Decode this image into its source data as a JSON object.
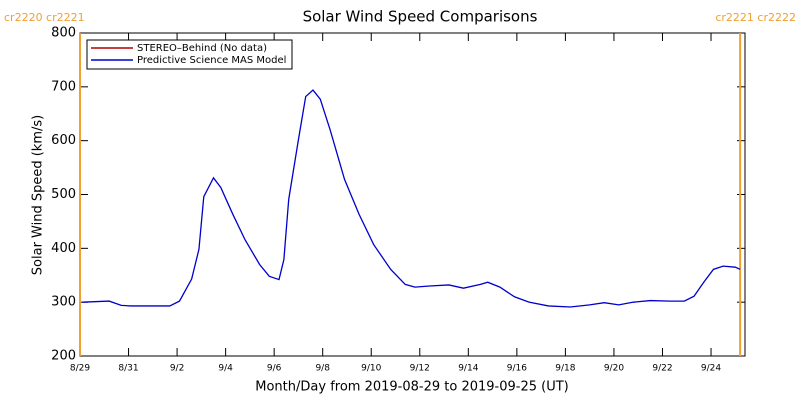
{
  "chart_data": {
    "type": "line",
    "title": "Solar Wind Speed Comparisons",
    "x_label": "Month/Day from 2019-08-29 to 2019-09-25 (UT)",
    "y_label": "Solar Wind Speed (km/s)",
    "xlim": [
      0,
      27.4
    ],
    "ylim": [
      200,
      800
    ],
    "xticks": [
      {
        "value": 0,
        "label": "8/29"
      },
      {
        "value": 2,
        "label": "8/31"
      },
      {
        "value": 4,
        "label": "9/2"
      },
      {
        "value": 6,
        "label": "9/4"
      },
      {
        "value": 8,
        "label": "9/6"
      },
      {
        "value": 10,
        "label": "9/8"
      },
      {
        "value": 12,
        "label": "9/10"
      },
      {
        "value": 14,
        "label": "9/12"
      },
      {
        "value": 16,
        "label": "9/14"
      },
      {
        "value": 18,
        "label": "9/16"
      },
      {
        "value": 20,
        "label": "9/18"
      },
      {
        "value": 22,
        "label": "9/20"
      },
      {
        "value": 24,
        "label": "9/22"
      },
      {
        "value": 26,
        "label": "9/24"
      }
    ],
    "yticks": [
      200,
      300,
      400,
      500,
      600,
      700,
      800
    ],
    "markers": [
      {
        "x": 0,
        "label": "cr2220 cr2221",
        "color": "#f0a030"
      },
      {
        "x": 27.2,
        "label": "cr2221 cr2222",
        "color": "#f0a030"
      }
    ],
    "series": [
      {
        "name": "STEREO–Behind (No data)",
        "color": "#b00000",
        "x": [],
        "values": []
      },
      {
        "name": "Predictive Science MAS Model",
        "color": "#0000cc",
        "x": [
          0.1,
          1.2,
          1.7,
          2.1,
          2.9,
          3.7,
          4.1,
          4.6,
          4.9,
          5.1,
          5.5,
          5.8,
          6.3,
          6.8,
          7.4,
          7.8,
          8.2,
          8.4,
          8.6,
          9.0,
          9.3,
          9.6,
          9.9,
          10.3,
          10.9,
          11.5,
          12.1,
          12.8,
          13.4,
          13.8,
          14.4,
          15.2,
          15.8,
          16.5,
          16.8,
          17.3,
          17.9,
          18.5,
          19.3,
          20.2,
          21.0,
          21.6,
          22.2,
          22.8,
          23.5,
          24.3,
          24.9,
          25.3,
          25.7,
          26.1,
          26.5,
          27.0,
          27.2
        ],
        "values": [
          300,
          302,
          294,
          293,
          293,
          293,
          302,
          343,
          398,
          496,
          531,
          513,
          463,
          416,
          370,
          348,
          342,
          379,
          491,
          602,
          682,
          694,
          677,
          621,
          528,
          463,
          407,
          361,
          333,
          328,
          330,
          332,
          326,
          333,
          337,
          328,
          310,
          300,
          293,
          291,
          295,
          299,
          295,
          300,
          303,
          302,
          302,
          311,
          337,
          361,
          367,
          365,
          361
        ]
      }
    ],
    "legend": "upper left"
  }
}
